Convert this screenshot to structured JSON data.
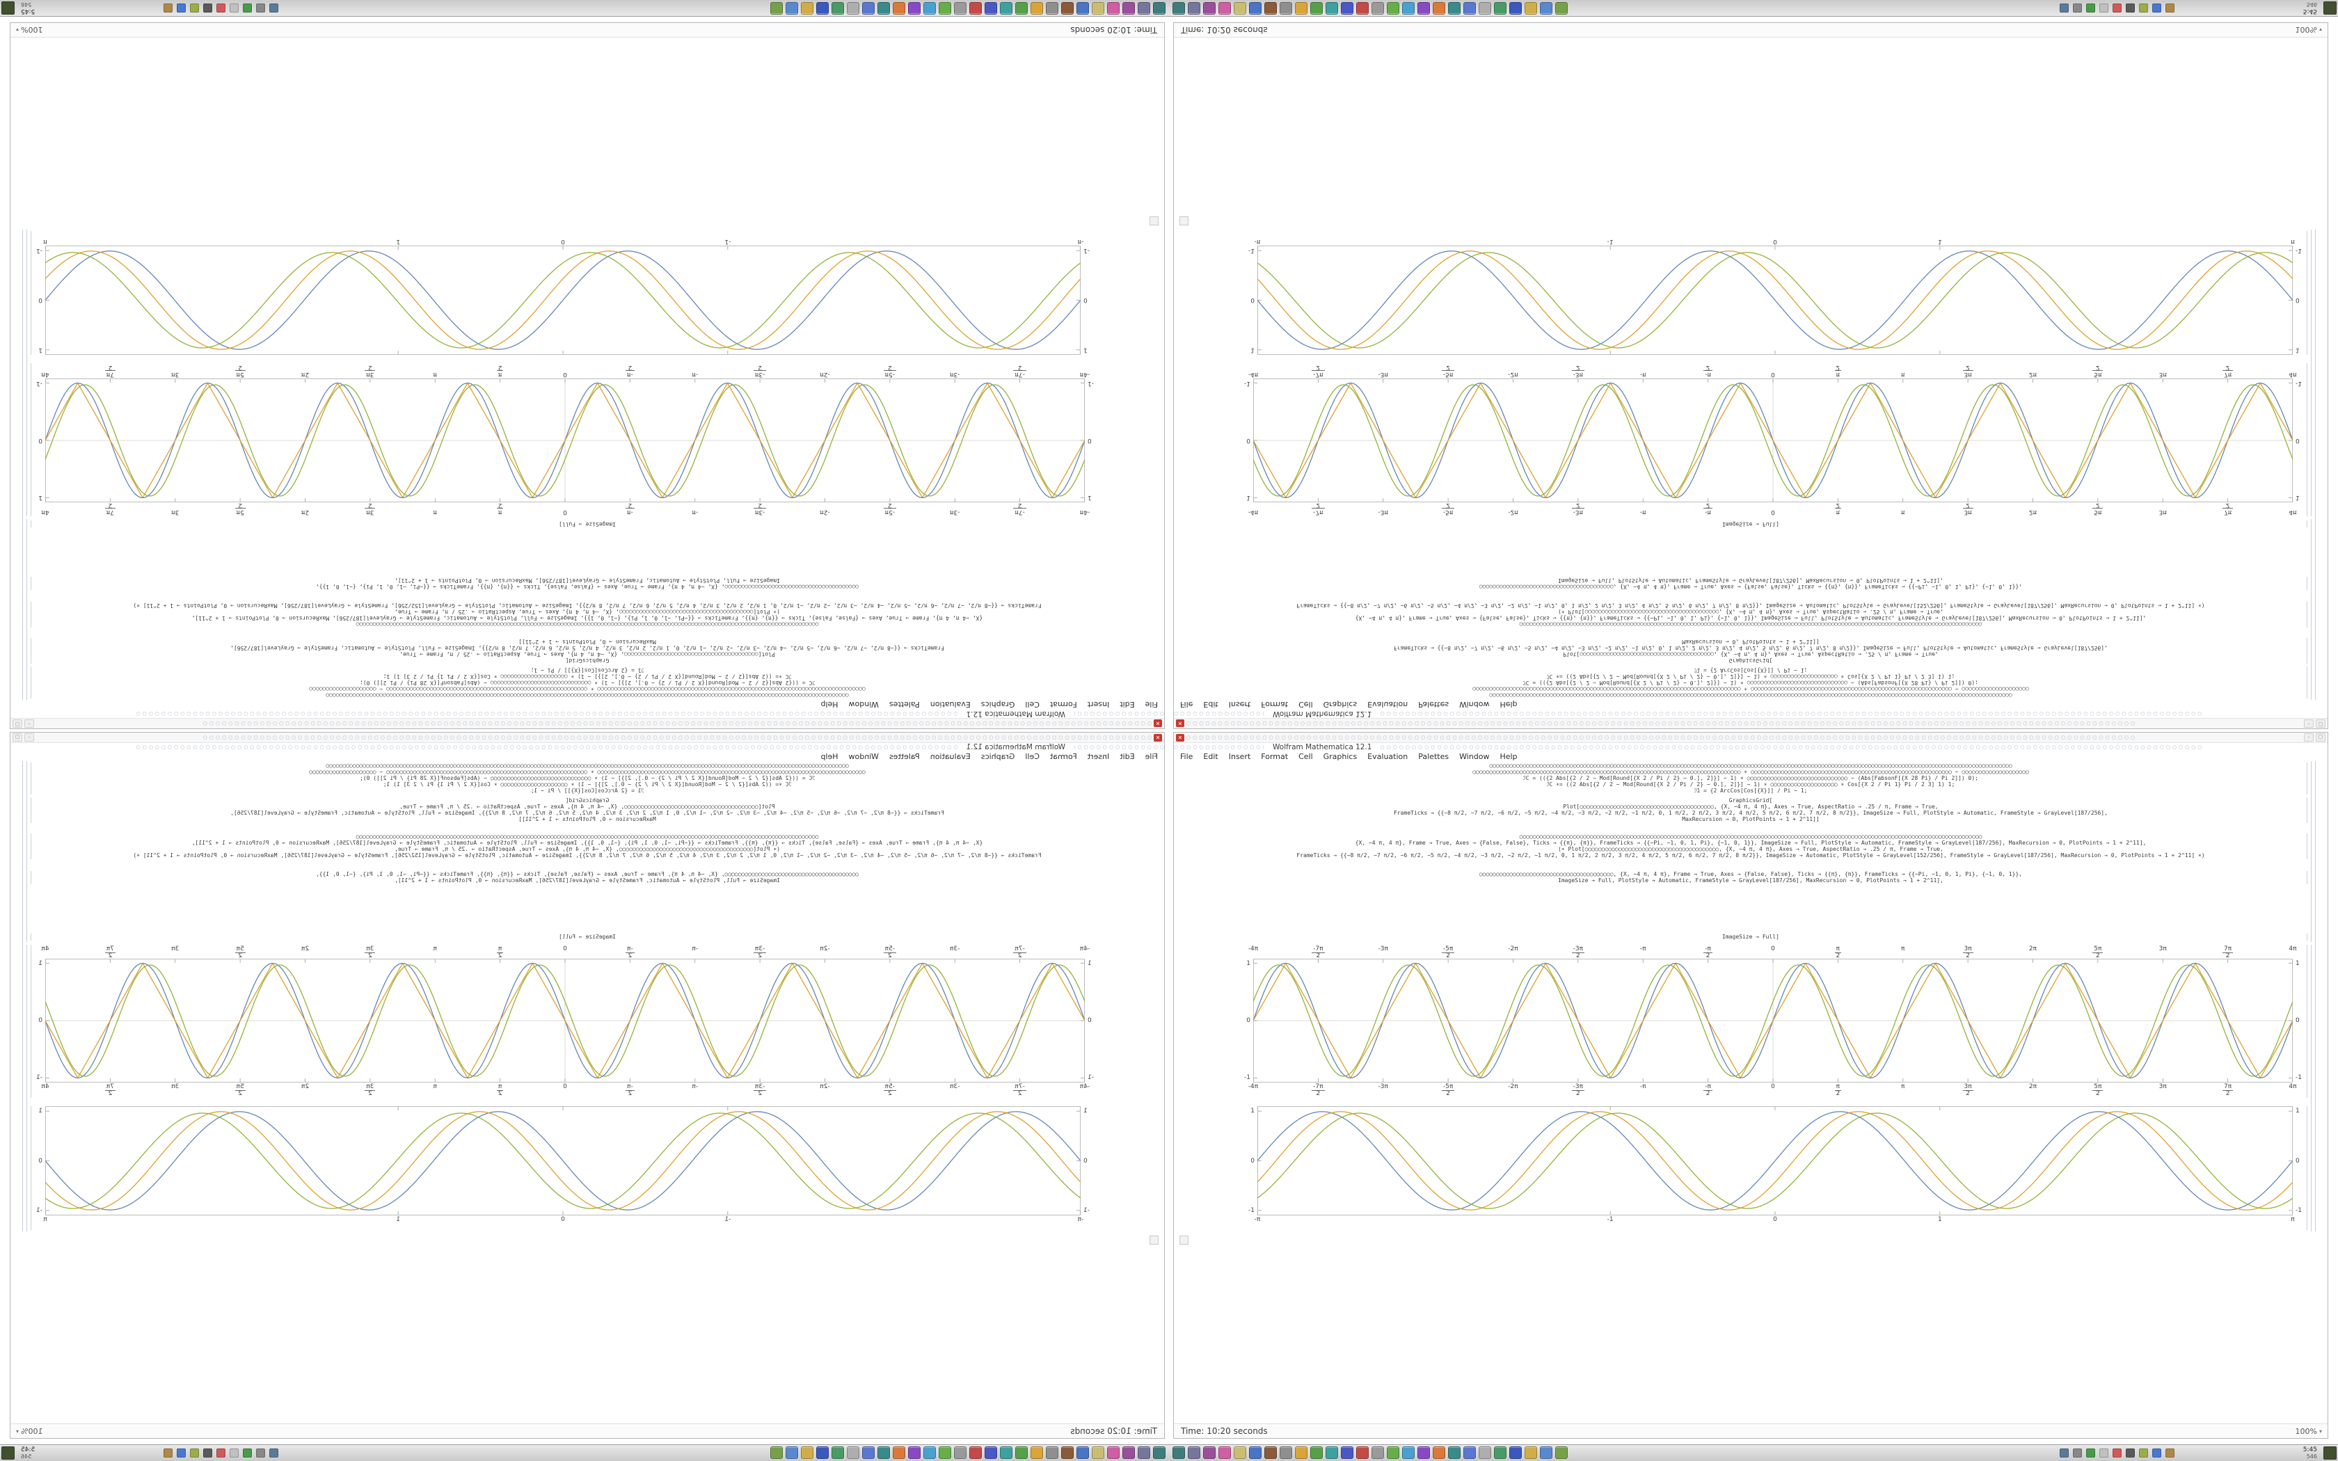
{
  "window": {
    "title": "Wolfram Mathematica 12.1",
    "close_glyph": "✕",
    "minimize_glyph": "–",
    "maximize_glyph": "▢",
    "menu": [
      "File",
      "Edit",
      "Insert",
      "Format",
      "Cell",
      "Graphics",
      "Evaluation",
      "Palettes",
      "Window",
      "Help"
    ],
    "toolbar_rows": [
      150,
      16,
      130
    ],
    "toolbar_icon_glyph": "○",
    "status_time": "Time: 10:20 seconds",
    "magnification": "100%"
  },
  "code_cells": [
    {
      "lines": [
        "○○○○○○○○○○○○○○○○○○○○○○○○○○○○○○○○○○○○○○○○○○○○○○○○○○○○○○○○○○○○○○○○○○○○○○○○○○○○○○○○○○○○○○○○○○○○○○○○○○○○○○○○○○○○○○○○○○○○○○○○○○○○○○○○○○○○○○○○○○○○○○○○○○○○○○○○○○○○",
        "○○○○○○○○○○○○○○○○○○○○○○○○○○○○○○○○○○○○○○○○○○○○○○○○○○○○○○○○○○○○○○○○○○○○○○○○○○○○○○○○ ∗ ○○○○○○○○○○○○○○○○○○○○○○○○○○○○○○○○○○○○○○○○○○○○○○○○○○○○○○○○○○○○ − ○○○○○○○○○○○○○○○○○○○○",
        "ℐC = (({2 Abs[{2 / 2 − Mod[Round[{X 2 / Pi / 2} − 0.], 2]}] − 1) ∗ ○○○○○○○○○○○○○○○○○○○○○○○○○○○○○○ − (Abs[FabsonF[{X 28 Pi} / Pi 2]]) 0);",
        "ℐC ∗= ((2 Abs[{2 / 2 − Mod[Round[{X 2 / Pi / 2} − 0.], 2]}] − 1) ∗ ○○○○○○○○○○○○○○○○○○○○ ∗ Cos[{X 2 / Pi 1} Pi / 2 3] 1) 1;",
        "ℐ1 = {2 ArcCos[Cos[{X}]] / Pi − 1;"
      ]
    },
    {
      "lines": [
        "GraphicsGrid[",
        "Plot[○○○○○○○○○○○○○○○○○○○○○○○○○○○○○○○○○○○○○○○○, {X, −4 π, 4 π}, Axes → True, AspectRatio → .25 / π, Frame → True,",
        "FrameTicks → {{−8 π/2, −7 π/2, −6 π/2, −5 π/2, −4 π/2, −3 π/2, −2 π/2, −1 π/2, 0, 1 π/2, 2 π/2, 3 π/2, 4 π/2, 5 π/2, 6 π/2, 7 π/2, 8 π/2}}, ImageSize → Full, PlotStyle → Automatic, FrameStyle → GrayLevel[187/256],",
        "MaxRecursion → 0, PlotPoints → 1 + 2^11]]"
      ]
    },
    {
      "lines": [
        "○○○○○○○○○○○○○○○○○○○○○○○○○○○○○○○○○○○○○○○○○○○○○○○○○○○○○○○○○○○○○○○○○○○○○○○○○○○○○○○○○○○○○○○○○○○○○○○○○○○○○○○○○○○○○○○○○○○○○○○○○○○○○○○○○○○○○○○○○○",
        "{X, −4 π, 4 π}, Frame → True, Axes → {False, False}, Ticks → {{π}, {π}}, FrameTicks → {{−Pi, −1, 0, 1, Pi}, {−1, 0, 1}}, ImageSize → Full, PlotStyle → Automatic, FrameStyle → GrayLevel[187/256], MaxRecursion → 0, PlotPoints → 1 + 2^11],",
        "(∗ Plot[○○○○○○○○○○○○○○○○○○○○○○○○○○○○○○○○○○○○○○○○, {X, −4 π, 4 π}, Axes → True, AspectRatio → .25 / π, Frame → True,",
        "FrameTicks → {{−8 π/2, −7 π/2, −6 π/2, −5 π/2, −4 π/2, −3 π/2, −2 π/2, −1 π/2, 0, 1 π/2, 2 π/2, 3 π/2, 4 π/2, 5 π/2, 6 π/2, 7 π/2, 8 π/2}}, ImageSize → Automatic, PlotStyle → GrayLevel[152/256], FrameStyle → GrayLevel[187/256], MaxRecursion → 0, PlotPoints → 1 + 2^11] ∗)"
      ]
    },
    {
      "lines": [
        "○○○○○○○○○○○○○○○○○○○○○○○○○○○○○○○○○○○○○○○○, {X, −4 π, 4 π}, Frame → True, Axes → {False, False}, Ticks → {{π}, {π}}, FrameTicks → {{−Pi, −1, 0, 1, Pi}, {−1, 0, 1}},",
        "ImageSize → Full, PlotStyle → Automatic, FrameStyle → GrayLevel[187/256], MaxRecursion → 0, PlotPoints → 1 + 2^11],"
      ]
    },
    {
      "lines": [
        "ImageSize → Full]"
      ]
    }
  ],
  "chart_data": [
    {
      "type": "line",
      "name": "triple-wave-pi-plot",
      "x_min": -12.5664,
      "x_max": 12.5664,
      "y_min": -1.08,
      "y_max": 1.08,
      "frame": true,
      "frame_color": "#bcbcbc",
      "axes": true,
      "labels_top": true,
      "x_tick_values": [
        -12.5664,
        -10.9956,
        -9.4248,
        -7.854,
        -6.2832,
        -4.7124,
        -3.1416,
        -1.5708,
        0,
        1.5708,
        3.1416,
        4.7124,
        6.2832,
        7.854,
        9.4248,
        10.9956,
        12.5664
      ],
      "x_tick_labels": [
        "-4π",
        "-7π/2",
        "-3π",
        "-5π/2",
        "-2π",
        "-3π/2",
        "-π",
        "-π/2",
        "0",
        "π/2",
        "π",
        "3π/2",
        "2π",
        "5π/2",
        "3π",
        "7π/2",
        "4π"
      ],
      "y_tick_values": [
        -1,
        0,
        1
      ],
      "y_tick_labels": [
        "-1",
        "0",
        "1"
      ],
      "series": [
        {
          "name": "wave-blue",
          "color": "#5E81B5",
          "fn": "sin",
          "freq": 2,
          "phase": 0,
          "amp": 1.0
        },
        {
          "name": "wave-gold",
          "color": "#E09C24",
          "fn": "tri",
          "freq": 2,
          "phase": 0,
          "amp": 1.0
        },
        {
          "name": "wave-green",
          "color": "#8FB032",
          "fn": "sin",
          "freq": 2,
          "phase": 0.35,
          "amp": 0.97
        }
      ]
    },
    {
      "type": "line",
      "name": "triple-sine-plot",
      "x_min": -3.1416,
      "x_max": 3.1416,
      "y_min": -1.1,
      "y_max": 1.1,
      "frame": true,
      "frame_color": "#bcbcbc",
      "axes": false,
      "labels_top": false,
      "x_tick_values": [
        -3.1416,
        -1,
        0,
        1,
        3.1416
      ],
      "x_tick_labels": [
        "-π",
        "-1",
        "0",
        "1",
        "π"
      ],
      "y_tick_values": [
        -1,
        0,
        1
      ],
      "y_tick_labels": [
        "-1",
        "0",
        "1"
      ],
      "series": [
        {
          "name": "wave-blue",
          "color": "#5E81B5",
          "fn": "sin",
          "freq": 4,
          "phase": 0,
          "amp": 0.99
        },
        {
          "name": "wave-gold",
          "color": "#E09C24",
          "fn": "sin",
          "freq": 4,
          "phase": -0.45,
          "amp": 0.99
        },
        {
          "name": "wave-green",
          "color": "#8FB032",
          "fn": "sin",
          "freq": 4,
          "phase": -0.9,
          "amp": 0.96
        }
      ]
    }
  ],
  "taskbar": {
    "clock_line1": "5:45",
    "clock_line2": "546",
    "launchers": [
      {
        "name": "launcher-icon-1",
        "color": "#3f7d7d"
      },
      {
        "name": "launcher-icon-2",
        "color": "#76769c"
      },
      {
        "name": "launcher-icon-3",
        "color": "#9a4f9a"
      },
      {
        "name": "launcher-icon-4",
        "color": "#cf5ea2"
      },
      {
        "name": "launcher-icon-5",
        "color": "#c9bd72"
      },
      {
        "name": "launcher-icon-6",
        "color": "#4a74c4"
      },
      {
        "name": "launcher-icon-7",
        "color": "#8a5a3a"
      },
      {
        "name": "launcher-icon-8",
        "color": "#8f8f8f"
      },
      {
        "name": "launcher-icon-9",
        "color": "#d9a43a"
      },
      {
        "name": "launcher-icon-10",
        "color": "#57a04a"
      },
      {
        "name": "launcher-icon-11",
        "color": "#3fa0a0"
      },
      {
        "name": "launcher-icon-12",
        "color": "#4a58c4"
      },
      {
        "name": "launcher-icon-13",
        "color": "#c44a4a"
      },
      {
        "name": "launcher-icon-14",
        "color": "#9a9a9a"
      },
      {
        "name": "launcher-icon-15",
        "color": "#67ad4a"
      },
      {
        "name": "launcher-icon-16",
        "color": "#4aa0cf"
      },
      {
        "name": "launcher-icon-17",
        "color": "#874ac4"
      },
      {
        "name": "launcher-icon-18",
        "color": "#d97a3a"
      },
      {
        "name": "launcher-icon-19",
        "color": "#3a8a8a"
      },
      {
        "name": "launcher-icon-20",
        "color": "#5a78cf"
      },
      {
        "name": "launcher-icon-21",
        "color": "#aeaeae"
      },
      {
        "name": "launcher-icon-22",
        "color": "#4a9a67"
      },
      {
        "name": "launcher-icon-23",
        "color": "#3a58bd"
      },
      {
        "name": "launcher-icon-24",
        "color": "#cfae4a"
      },
      {
        "name": "launcher-icon-25",
        "color": "#5a88cf"
      },
      {
        "name": "launcher-icon-26",
        "color": "#76a04a"
      }
    ],
    "tray": [
      {
        "name": "tray-icon-1",
        "color": "#5a7a9a"
      },
      {
        "name": "tray-icon-2",
        "color": "#888888"
      },
      {
        "name": "tray-icon-3",
        "color": "#4a9a4a"
      },
      {
        "name": "tray-icon-4",
        "color": "#c0c0c0"
      },
      {
        "name": "tray-icon-5",
        "color": "#cf5a5a"
      },
      {
        "name": "tray-icon-6",
        "color": "#5a5a5a"
      },
      {
        "name": "tray-icon-7",
        "color": "#9aad4a"
      },
      {
        "name": "tray-icon-8",
        "color": "#4a78cf"
      },
      {
        "name": "tray-icon-9",
        "color": "#ad884a"
      }
    ]
  }
}
